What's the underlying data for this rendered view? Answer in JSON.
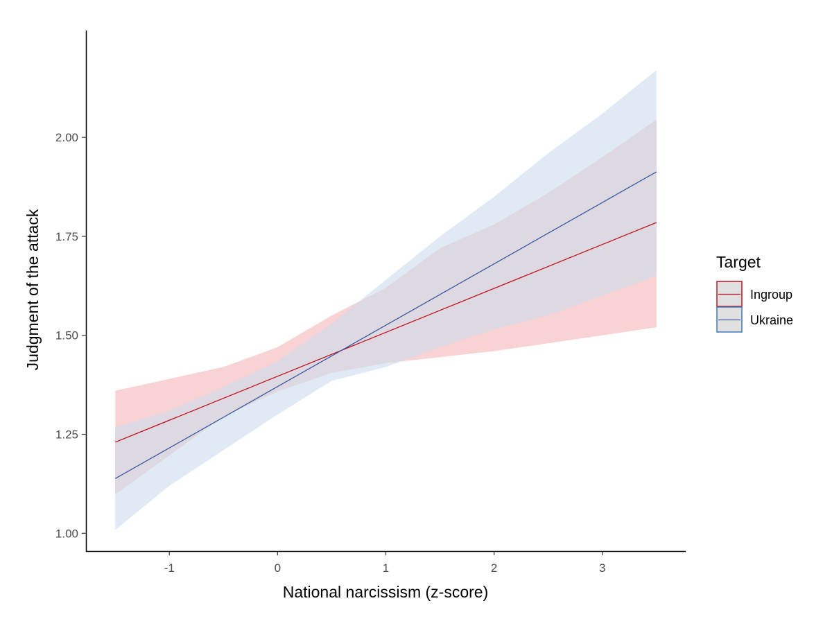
{
  "chart_data": {
    "type": "line",
    "title": "",
    "xlabel": "National narcissism (z-score)",
    "ylabel": "Judgment of the attack",
    "xlim": [
      -1.77,
      3.77
    ],
    "ylim": [
      0.955,
      2.27
    ],
    "x_ticks": [
      -1,
      0,
      1,
      2,
      3
    ],
    "x_tick_labels": [
      "-1",
      "0",
      "1",
      "2",
      "3"
    ],
    "y_ticks": [
      1.0,
      1.25,
      1.5,
      1.75,
      2.0
    ],
    "y_tick_labels": [
      "1.00",
      "1.25",
      "1.50",
      "1.75",
      "2.00"
    ],
    "grid": false,
    "legend": {
      "title": "Target",
      "position": "right"
    },
    "series": [
      {
        "name": "Ingroup",
        "color": "#c0141e",
        "band_color": "#f8c8c8",
        "x": [
          -1.5,
          3.5
        ],
        "y": [
          1.23,
          1.785
        ],
        "band": {
          "x": [
            -1.5,
            -0.5,
            0,
            0.5,
            1,
            1.5,
            2,
            2.5,
            3,
            3.5
          ],
          "lower": [
            1.098,
            1.295,
            1.358,
            1.405,
            1.43,
            1.445,
            1.46,
            1.48,
            1.5,
            1.52
          ],
          "upper": [
            1.36,
            1.42,
            1.47,
            1.55,
            1.62,
            1.72,
            1.78,
            1.86,
            1.95,
            2.045
          ]
        }
      },
      {
        "name": "Ukraine",
        "color": "#3a5a9c",
        "band_color": "#cbdcec",
        "x": [
          -1.5,
          3.5
        ],
        "y": [
          1.138,
          1.913
        ],
        "band": {
          "x": [
            -1.5,
            -1,
            -0.5,
            0,
            0.5,
            1,
            1.5,
            2,
            2.5,
            3,
            3.5
          ],
          "lower": [
            1.008,
            1.12,
            1.21,
            1.3,
            1.385,
            1.42,
            1.47,
            1.515,
            1.55,
            1.6,
            1.65
          ],
          "upper": [
            1.268,
            1.31,
            1.37,
            1.435,
            1.53,
            1.64,
            1.75,
            1.85,
            1.96,
            2.06,
            2.17
          ]
        }
      }
    ]
  }
}
